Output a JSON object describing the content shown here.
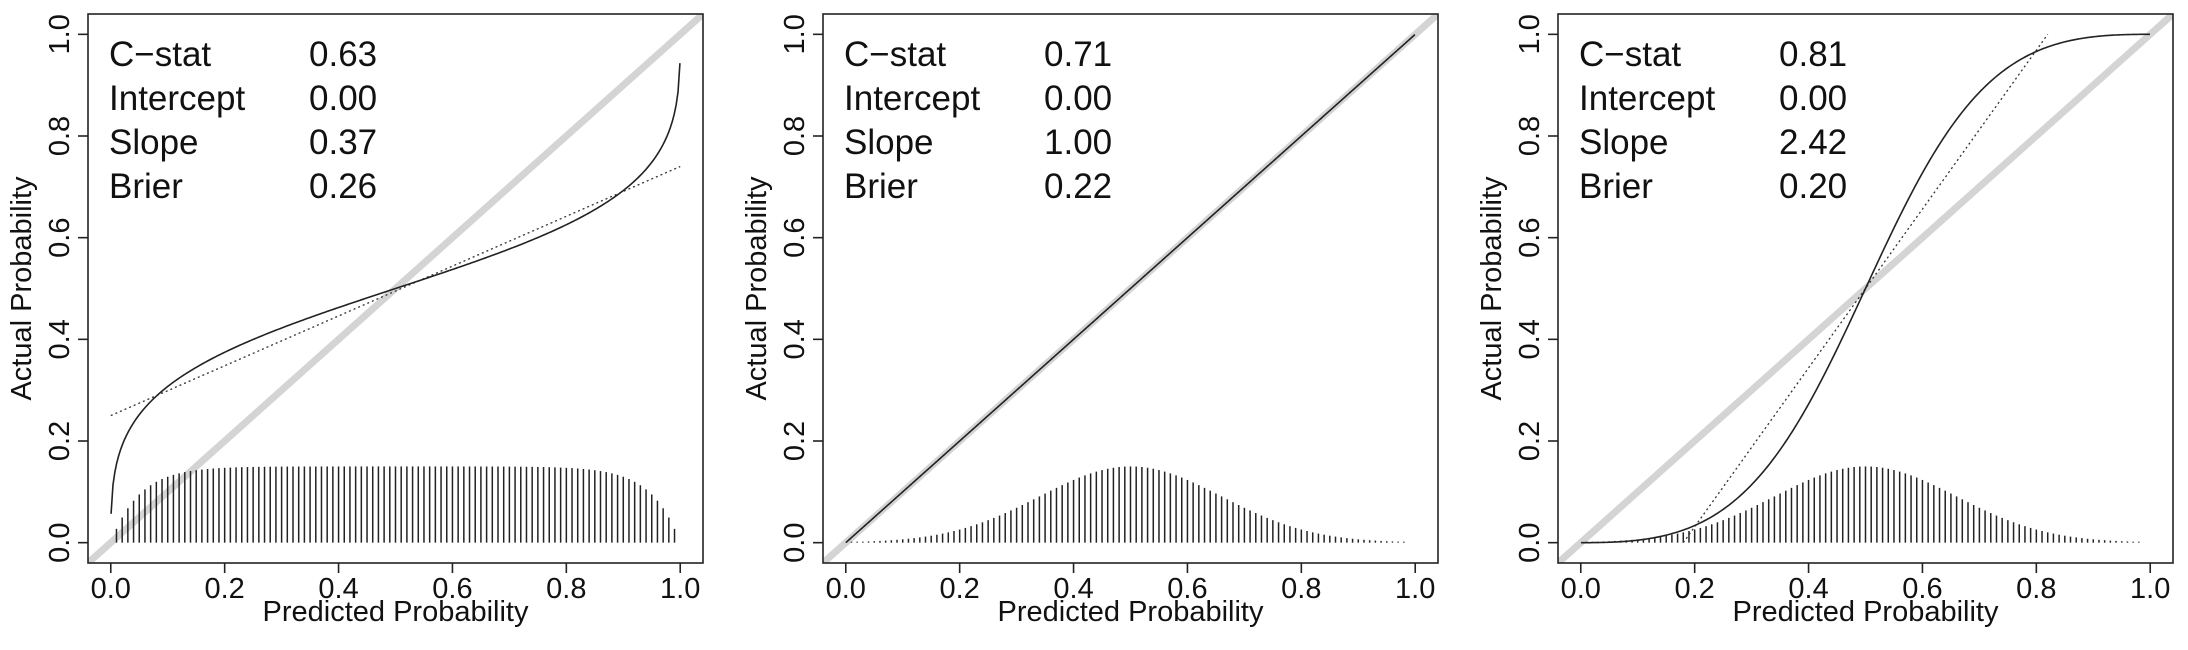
{
  "chart_data": [
    {
      "type": "line",
      "xlabel": "Predicted Probability",
      "ylabel": "Actual Probability",
      "xlim": [
        0,
        1
      ],
      "ylim": [
        0,
        1
      ],
      "x_ticks": [
        "0.0",
        "0.2",
        "0.4",
        "0.6",
        "0.8",
        "1.0"
      ],
      "y_ticks": [
        "0.0",
        "0.2",
        "0.4",
        "0.6",
        "0.8",
        "1.0"
      ],
      "reference_line": {
        "type": "diagonal",
        "color": "#d4d4d4"
      },
      "stats": [
        {
          "label": "C−stat",
          "value": "0.63"
        },
        {
          "label": "Intercept",
          "value": "0.00"
        },
        {
          "label": "Slope",
          "value": "0.37"
        },
        {
          "label": "Brier",
          "value": "0.26"
        }
      ],
      "calibration_slope": 0.37,
      "calibration_intercept": 0.0,
      "series": [
        {
          "style": "solid",
          "x": [
            0.0,
            0.05,
            0.1,
            0.2,
            0.3,
            0.4,
            0.5,
            0.6,
            0.7,
            0.8,
            0.9,
            0.95,
            1.0
          ],
          "y": [
            0.07,
            0.24,
            0.3,
            0.37,
            0.42,
            0.46,
            0.5,
            0.54,
            0.58,
            0.63,
            0.7,
            0.76,
            0.93
          ]
        },
        {
          "style": "dotted",
          "x": [
            0.0,
            1.0
          ],
          "y": [
            0.25,
            0.74
          ]
        }
      ],
      "histogram": {
        "type": "spikes",
        "distribution": "flat",
        "max_height": 0.15,
        "x_range": [
          0.0,
          1.0
        ]
      }
    },
    {
      "type": "line",
      "xlabel": "Predicted Probability",
      "ylabel": "Actual Probability",
      "xlim": [
        0,
        1
      ],
      "ylim": [
        0,
        1
      ],
      "x_ticks": [
        "0.0",
        "0.2",
        "0.4",
        "0.6",
        "0.8",
        "1.0"
      ],
      "y_ticks": [
        "0.0",
        "0.2",
        "0.4",
        "0.6",
        "0.8",
        "1.0"
      ],
      "reference_line": {
        "type": "diagonal",
        "color": "#d4d4d4"
      },
      "stats": [
        {
          "label": "C−stat",
          "value": "0.71"
        },
        {
          "label": "Intercept",
          "value": "0.00"
        },
        {
          "label": "Slope",
          "value": "1.00"
        },
        {
          "label": "Brier",
          "value": "0.22"
        }
      ],
      "calibration_slope": 1.0,
      "calibration_intercept": 0.0,
      "series": [
        {
          "style": "solid",
          "x": [
            0.0,
            1.0
          ],
          "y": [
            0.0,
            1.0
          ]
        },
        {
          "style": "dotted",
          "x": [
            0.0,
            1.0
          ],
          "y": [
            0.0,
            1.0
          ]
        }
      ],
      "histogram": {
        "type": "spikes",
        "distribution": "bell",
        "max_height": 0.15,
        "center": 0.5,
        "x_range": [
          0.0,
          1.0
        ]
      }
    },
    {
      "type": "line",
      "xlabel": "Predicted Probability",
      "ylabel": "Actual Probability",
      "xlim": [
        0,
        1
      ],
      "ylim": [
        0,
        1
      ],
      "x_ticks": [
        "0.0",
        "0.2",
        "0.4",
        "0.6",
        "0.8",
        "1.0"
      ],
      "y_ticks": [
        "0.0",
        "0.2",
        "0.4",
        "0.6",
        "0.8",
        "1.0"
      ],
      "reference_line": {
        "type": "diagonal",
        "color": "#d4d4d4"
      },
      "stats": [
        {
          "label": "C−stat",
          "value": "0.81"
        },
        {
          "label": "Intercept",
          "value": "0.00"
        },
        {
          "label": "Slope",
          "value": "2.42"
        },
        {
          "label": "Brier",
          "value": "0.20"
        }
      ],
      "calibration_slope": 2.42,
      "calibration_intercept": 0.0,
      "series": [
        {
          "style": "solid",
          "x": [
            0.0,
            0.1,
            0.2,
            0.3,
            0.4,
            0.5,
            0.6,
            0.7,
            0.8,
            0.9,
            1.0
          ],
          "y": [
            0.0,
            0.005,
            0.04,
            0.13,
            0.29,
            0.5,
            0.71,
            0.87,
            0.96,
            0.995,
            1.0
          ]
        },
        {
          "style": "dotted",
          "x": [
            0.18,
            0.82
          ],
          "y": [
            0.0,
            1.0
          ]
        }
      ],
      "histogram": {
        "type": "spikes",
        "distribution": "bell",
        "max_height": 0.15,
        "center": 0.5,
        "x_range": [
          0.0,
          1.0
        ]
      }
    }
  ]
}
